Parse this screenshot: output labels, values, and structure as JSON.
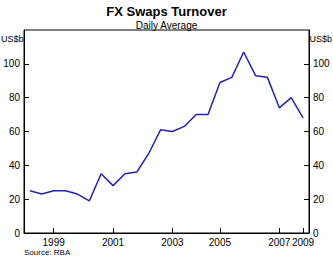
{
  "chart_data": {
    "type": "line",
    "title": "FX Swaps Turnover",
    "subtitle": "Daily Average",
    "y_label": "US$b",
    "y2_label": "US$b",
    "source": "Source: RBA",
    "categories": [
      null,
      null,
      "1999",
      null,
      null,
      null,
      null,
      "2001",
      null,
      null,
      null,
      null,
      "2003",
      null,
      null,
      null,
      "2005",
      null,
      null,
      null,
      null,
      "2007",
      null,
      "2009"
    ],
    "values": [
      25,
      23,
      25,
      25,
      23,
      19,
      35,
      28,
      35,
      36,
      47,
      61,
      60,
      63,
      70,
      70,
      89,
      92,
      107,
      93,
      92,
      74,
      80,
      68
    ],
    "color": "#2424b4",
    "ylim": [
      0,
      120
    ],
    "yticks": [
      0,
      20,
      40,
      60,
      80,
      100
    ],
    "y2lim": [
      0,
      120
    ],
    "y2ticks": [
      0,
      20,
      40,
      60,
      80,
      100
    ],
    "grid": false
  }
}
